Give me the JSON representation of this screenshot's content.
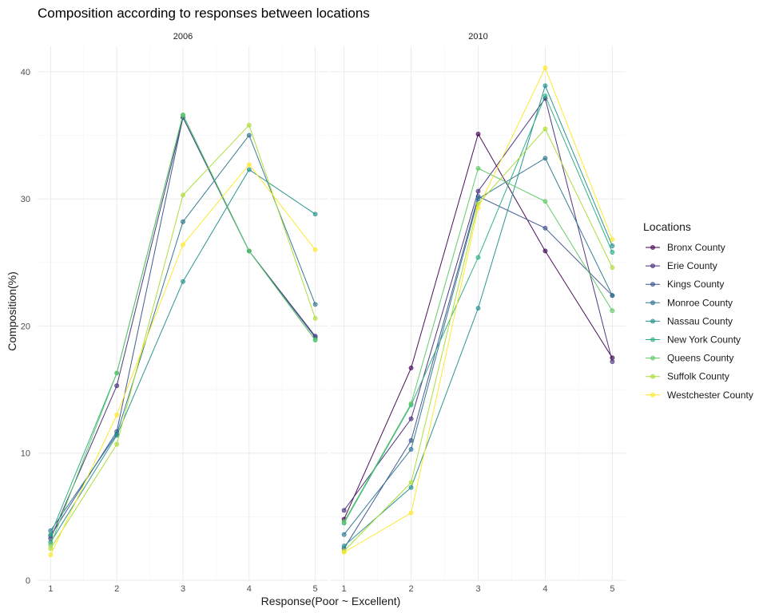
{
  "chart_data": {
    "type": "line",
    "title": "Composition according to responses between locations",
    "xlabel": "Response(Poor ~ Excellent)",
    "ylabel": "Composition(%)",
    "x": [
      1,
      2,
      3,
      4,
      5
    ],
    "ylim": [
      0,
      42
    ],
    "yticks": [
      0,
      10,
      20,
      30,
      40
    ],
    "grid": true,
    "legend": {
      "title": "Locations",
      "position": "right"
    },
    "locations": [
      {
        "name": "Bronx County",
        "color": "#440154"
      },
      {
        "name": "Erie County",
        "color": "#472D7B"
      },
      {
        "name": "Kings County",
        "color": "#3B528B"
      },
      {
        "name": "Monroe County",
        "color": "#2C728E"
      },
      {
        "name": "Nassau County",
        "color": "#21908C"
      },
      {
        "name": "New York County",
        "color": "#27AD81"
      },
      {
        "name": "Queens County",
        "color": "#5DC863"
      },
      {
        "name": "Suffolk County",
        "color": "#AADC32"
      },
      {
        "name": "Westchester County",
        "color": "#FDE725"
      }
    ],
    "panels": [
      {
        "label": "2006",
        "series": [
          {
            "name": "Erie County",
            "values": [
              3.3,
              15.3,
              36.4,
              25.9,
              19.2
            ]
          },
          {
            "name": "Kings County",
            "values": [
              3.5,
              11.7,
              36.4,
              25.9,
              19.1
            ]
          },
          {
            "name": "Monroe County",
            "values": [
              3.9,
              11.5,
              28.2,
              35.0,
              21.7
            ]
          },
          {
            "name": "Nassau County",
            "values": [
              3.0,
              11.4,
              23.5,
              32.3,
              28.8
            ]
          },
          {
            "name": "New York County",
            "values": [
              3.6,
              16.3,
              36.6,
              25.9,
              18.9
            ]
          },
          {
            "name": "Queens County",
            "values": [
              2.8,
              16.3,
              36.6,
              25.9,
              18.9
            ]
          },
          {
            "name": "Suffolk County",
            "values": [
              2.5,
              10.7,
              30.3,
              35.8,
              20.6
            ]
          },
          {
            "name": "Westchester County",
            "values": [
              2.0,
              13.0,
              26.4,
              32.7,
              26.0
            ]
          }
        ]
      },
      {
        "label": "2010",
        "series": [
          {
            "name": "Bronx County",
            "values": [
              4.8,
              16.7,
              35.1,
              25.9,
              17.5
            ]
          },
          {
            "name": "Erie County",
            "values": [
              5.5,
              12.7,
              30.6,
              37.9,
              17.2
            ]
          },
          {
            "name": "Kings County",
            "values": [
              2.5,
              11.0,
              30.2,
              27.7,
              22.4
            ]
          },
          {
            "name": "Monroe County",
            "values": [
              3.6,
              10.3,
              30.0,
              33.2,
              22.4
            ]
          },
          {
            "name": "Nassau County",
            "values": [
              2.7,
              7.3,
              21.4,
              38.9,
              26.3
            ]
          },
          {
            "name": "New York County",
            "values": [
              4.5,
              13.8,
              25.4,
              38.1,
              25.8
            ]
          },
          {
            "name": "Queens County",
            "values": [
              4.6,
              13.9,
              32.4,
              29.8,
              21.2
            ]
          },
          {
            "name": "Suffolk County",
            "values": [
              2.3,
              7.7,
              29.6,
              35.5,
              24.6
            ]
          },
          {
            "name": "Westchester County",
            "values": [
              2.2,
              5.3,
              29.3,
              40.3,
              26.8
            ]
          }
        ]
      }
    ]
  }
}
